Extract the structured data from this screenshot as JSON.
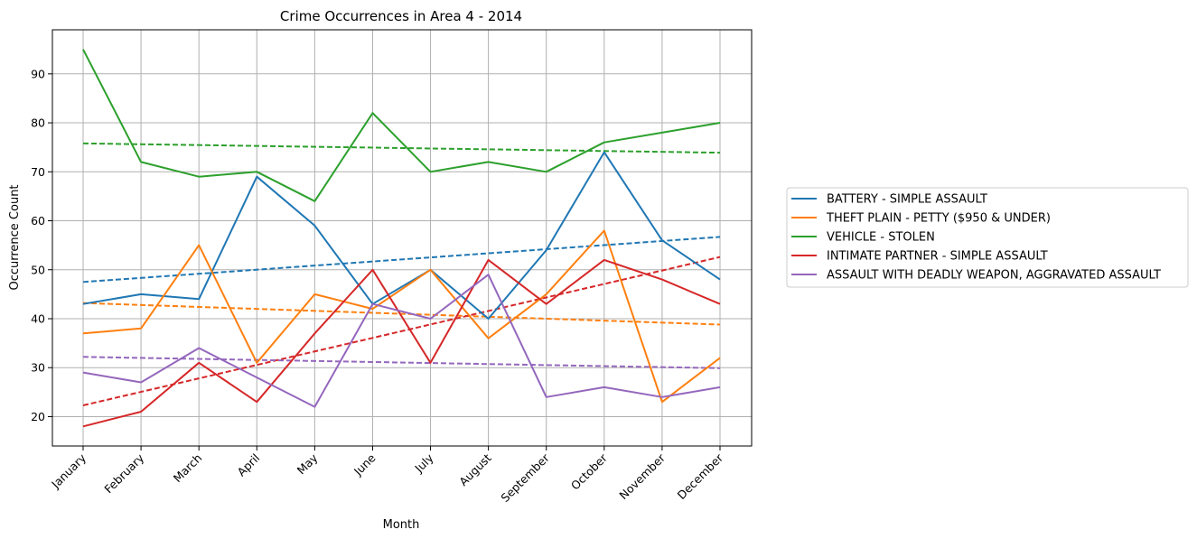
{
  "chart_data": {
    "type": "line",
    "title": "Crime Occurrences in Area 4 - 2014",
    "xlabel": "Month",
    "ylabel": "Occurrence Count",
    "categories": [
      "January",
      "February",
      "March",
      "April",
      "May",
      "June",
      "July",
      "August",
      "September",
      "October",
      "November",
      "December"
    ],
    "ylim": [
      14,
      99
    ],
    "yticks": [
      20,
      30,
      40,
      50,
      60,
      70,
      80,
      90
    ],
    "grid": true,
    "legend_position": "right-outside",
    "series": [
      {
        "name": "BATTERY - SIMPLE ASSAULT",
        "color": "#1f77b4",
        "values": [
          43,
          45,
          44,
          69,
          59,
          43,
          50,
          40,
          54,
          74,
          56,
          48
        ],
        "trend": [
          47.5,
          56.7
        ]
      },
      {
        "name": "THEFT PLAIN - PETTY ($950 & UNDER)",
        "color": "#ff7f0e",
        "values": [
          37,
          38,
          55,
          31,
          45,
          42,
          50,
          36,
          45,
          58,
          23,
          32
        ],
        "trend": [
          43.2,
          38.8
        ]
      },
      {
        "name": "VEHICLE - STOLEN",
        "color": "#2ca02c",
        "values": [
          95,
          72,
          69,
          70,
          64,
          82,
          70,
          72,
          70,
          76,
          78,
          80
        ],
        "trend": [
          75.8,
          73.9
        ]
      },
      {
        "name": "INTIMATE PARTNER - SIMPLE ASSAULT",
        "color": "#d62728",
        "values": [
          18,
          21,
          31,
          23,
          37,
          50,
          31,
          52,
          43,
          52,
          48,
          43
        ],
        "trend": [
          22.3,
          52.6
        ]
      },
      {
        "name": "ASSAULT WITH DEADLY WEAPON, AGGRAVATED ASSAULT",
        "color": "#9467bd",
        "values": [
          29,
          27,
          34,
          28,
          22,
          43,
          40,
          49,
          24,
          26,
          24,
          26
        ],
        "trend": [
          32.2,
          29.9
        ]
      }
    ]
  }
}
